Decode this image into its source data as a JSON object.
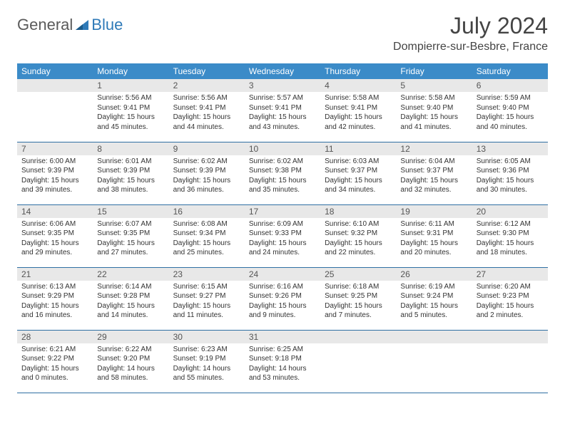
{
  "brand": {
    "part1": "General",
    "part2": "Blue"
  },
  "title": "July 2024",
  "location": "Dompierre-sur-Besbre, France",
  "colors": {
    "header_bg": "#3b8bc8",
    "header_text": "#ffffff",
    "daynum_bg": "#e8e8e8",
    "row_border": "#2f6fa3",
    "brand_gray": "#5a5a5a",
    "brand_blue": "#2f7ab8"
  },
  "weekdays": [
    "Sunday",
    "Monday",
    "Tuesday",
    "Wednesday",
    "Thursday",
    "Friday",
    "Saturday"
  ],
  "weeks": [
    [
      {
        "day": "",
        "sunrise": "",
        "sunset": "",
        "daylight": ""
      },
      {
        "day": "1",
        "sunrise": "Sunrise: 5:56 AM",
        "sunset": "Sunset: 9:41 PM",
        "daylight": "Daylight: 15 hours and 45 minutes."
      },
      {
        "day": "2",
        "sunrise": "Sunrise: 5:56 AM",
        "sunset": "Sunset: 9:41 PM",
        "daylight": "Daylight: 15 hours and 44 minutes."
      },
      {
        "day": "3",
        "sunrise": "Sunrise: 5:57 AM",
        "sunset": "Sunset: 9:41 PM",
        "daylight": "Daylight: 15 hours and 43 minutes."
      },
      {
        "day": "4",
        "sunrise": "Sunrise: 5:58 AM",
        "sunset": "Sunset: 9:41 PM",
        "daylight": "Daylight: 15 hours and 42 minutes."
      },
      {
        "day": "5",
        "sunrise": "Sunrise: 5:58 AM",
        "sunset": "Sunset: 9:40 PM",
        "daylight": "Daylight: 15 hours and 41 minutes."
      },
      {
        "day": "6",
        "sunrise": "Sunrise: 5:59 AM",
        "sunset": "Sunset: 9:40 PM",
        "daylight": "Daylight: 15 hours and 40 minutes."
      }
    ],
    [
      {
        "day": "7",
        "sunrise": "Sunrise: 6:00 AM",
        "sunset": "Sunset: 9:39 PM",
        "daylight": "Daylight: 15 hours and 39 minutes."
      },
      {
        "day": "8",
        "sunrise": "Sunrise: 6:01 AM",
        "sunset": "Sunset: 9:39 PM",
        "daylight": "Daylight: 15 hours and 38 minutes."
      },
      {
        "day": "9",
        "sunrise": "Sunrise: 6:02 AM",
        "sunset": "Sunset: 9:39 PM",
        "daylight": "Daylight: 15 hours and 36 minutes."
      },
      {
        "day": "10",
        "sunrise": "Sunrise: 6:02 AM",
        "sunset": "Sunset: 9:38 PM",
        "daylight": "Daylight: 15 hours and 35 minutes."
      },
      {
        "day": "11",
        "sunrise": "Sunrise: 6:03 AM",
        "sunset": "Sunset: 9:37 PM",
        "daylight": "Daylight: 15 hours and 34 minutes."
      },
      {
        "day": "12",
        "sunrise": "Sunrise: 6:04 AM",
        "sunset": "Sunset: 9:37 PM",
        "daylight": "Daylight: 15 hours and 32 minutes."
      },
      {
        "day": "13",
        "sunrise": "Sunrise: 6:05 AM",
        "sunset": "Sunset: 9:36 PM",
        "daylight": "Daylight: 15 hours and 30 minutes."
      }
    ],
    [
      {
        "day": "14",
        "sunrise": "Sunrise: 6:06 AM",
        "sunset": "Sunset: 9:35 PM",
        "daylight": "Daylight: 15 hours and 29 minutes."
      },
      {
        "day": "15",
        "sunrise": "Sunrise: 6:07 AM",
        "sunset": "Sunset: 9:35 PM",
        "daylight": "Daylight: 15 hours and 27 minutes."
      },
      {
        "day": "16",
        "sunrise": "Sunrise: 6:08 AM",
        "sunset": "Sunset: 9:34 PM",
        "daylight": "Daylight: 15 hours and 25 minutes."
      },
      {
        "day": "17",
        "sunrise": "Sunrise: 6:09 AM",
        "sunset": "Sunset: 9:33 PM",
        "daylight": "Daylight: 15 hours and 24 minutes."
      },
      {
        "day": "18",
        "sunrise": "Sunrise: 6:10 AM",
        "sunset": "Sunset: 9:32 PM",
        "daylight": "Daylight: 15 hours and 22 minutes."
      },
      {
        "day": "19",
        "sunrise": "Sunrise: 6:11 AM",
        "sunset": "Sunset: 9:31 PM",
        "daylight": "Daylight: 15 hours and 20 minutes."
      },
      {
        "day": "20",
        "sunrise": "Sunrise: 6:12 AM",
        "sunset": "Sunset: 9:30 PM",
        "daylight": "Daylight: 15 hours and 18 minutes."
      }
    ],
    [
      {
        "day": "21",
        "sunrise": "Sunrise: 6:13 AM",
        "sunset": "Sunset: 9:29 PM",
        "daylight": "Daylight: 15 hours and 16 minutes."
      },
      {
        "day": "22",
        "sunrise": "Sunrise: 6:14 AM",
        "sunset": "Sunset: 9:28 PM",
        "daylight": "Daylight: 15 hours and 14 minutes."
      },
      {
        "day": "23",
        "sunrise": "Sunrise: 6:15 AM",
        "sunset": "Sunset: 9:27 PM",
        "daylight": "Daylight: 15 hours and 11 minutes."
      },
      {
        "day": "24",
        "sunrise": "Sunrise: 6:16 AM",
        "sunset": "Sunset: 9:26 PM",
        "daylight": "Daylight: 15 hours and 9 minutes."
      },
      {
        "day": "25",
        "sunrise": "Sunrise: 6:18 AM",
        "sunset": "Sunset: 9:25 PM",
        "daylight": "Daylight: 15 hours and 7 minutes."
      },
      {
        "day": "26",
        "sunrise": "Sunrise: 6:19 AM",
        "sunset": "Sunset: 9:24 PM",
        "daylight": "Daylight: 15 hours and 5 minutes."
      },
      {
        "day": "27",
        "sunrise": "Sunrise: 6:20 AM",
        "sunset": "Sunset: 9:23 PM",
        "daylight": "Daylight: 15 hours and 2 minutes."
      }
    ],
    [
      {
        "day": "28",
        "sunrise": "Sunrise: 6:21 AM",
        "sunset": "Sunset: 9:22 PM",
        "daylight": "Daylight: 15 hours and 0 minutes."
      },
      {
        "day": "29",
        "sunrise": "Sunrise: 6:22 AM",
        "sunset": "Sunset: 9:20 PM",
        "daylight": "Daylight: 14 hours and 58 minutes."
      },
      {
        "day": "30",
        "sunrise": "Sunrise: 6:23 AM",
        "sunset": "Sunset: 9:19 PM",
        "daylight": "Daylight: 14 hours and 55 minutes."
      },
      {
        "day": "31",
        "sunrise": "Sunrise: 6:25 AM",
        "sunset": "Sunset: 9:18 PM",
        "daylight": "Daylight: 14 hours and 53 minutes."
      },
      {
        "day": "",
        "sunrise": "",
        "sunset": "",
        "daylight": ""
      },
      {
        "day": "",
        "sunrise": "",
        "sunset": "",
        "daylight": ""
      },
      {
        "day": "",
        "sunrise": "",
        "sunset": "",
        "daylight": ""
      }
    ]
  ]
}
